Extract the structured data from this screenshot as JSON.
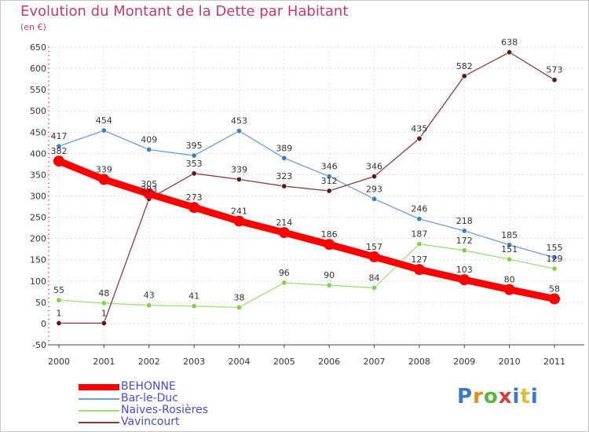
{
  "title": "Evolution du Montant de la Dette par Habitant",
  "subtitle": "(en €)",
  "logo": {
    "text": "Proxiti",
    "colors": [
      "#3a78c8",
      "#e88a1e",
      "#5bb53a",
      "#d83c3c",
      "#3a78c8",
      "#e0c020",
      "#3a78c8"
    ]
  },
  "chart_data": {
    "type": "line",
    "x": [
      "2000",
      "2001",
      "2002",
      "2003",
      "2004",
      "2005",
      "2006",
      "2007",
      "2008",
      "2009",
      "2010",
      "2011"
    ],
    "ylim": [
      -50,
      650
    ],
    "yticks": [
      "-50",
      "0",
      "50",
      "100",
      "150",
      "200",
      "250",
      "300",
      "350",
      "400",
      "450",
      "500",
      "550",
      "600",
      "650"
    ],
    "grid": true,
    "legend_position": "bottom-left",
    "series": [
      {
        "name": "BEHONNE",
        "color": "#ff0000",
        "values": [
          382,
          339,
          305,
          273,
          241,
          214,
          186,
          157,
          127,
          103,
          80,
          58
        ]
      },
      {
        "name": "Bar-le-Duc",
        "color": "#6e9ed6",
        "values": [
          417,
          454,
          409,
          395,
          453,
          389,
          346,
          293,
          246,
          218,
          185,
          155
        ]
      },
      {
        "name": "Naives-Rosières",
        "color": "#9ce07a",
        "values": [
          55,
          48,
          43,
          41,
          38,
          96,
          90,
          84,
          187,
          172,
          151,
          129
        ]
      },
      {
        "name": "Vavincourt",
        "color": "#8b3a3a",
        "values": [
          1,
          1,
          293,
          353,
          339,
          323,
          312,
          346,
          435,
          582,
          638,
          573
        ]
      }
    ]
  }
}
